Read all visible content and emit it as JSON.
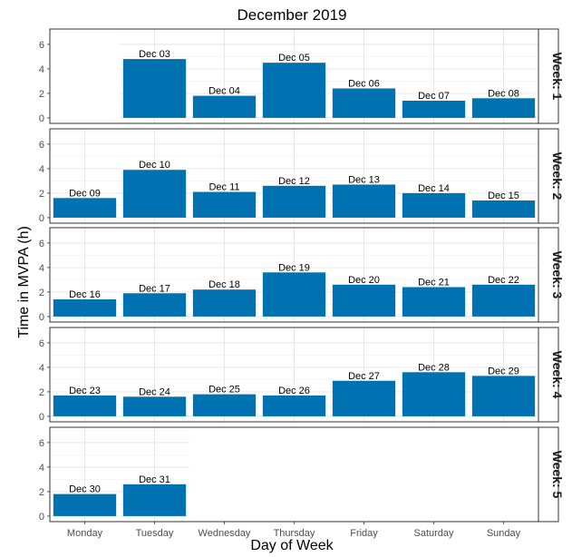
{
  "chart_data": {
    "type": "bar",
    "title": "December 2019",
    "xlabel": "Day of Week",
    "ylabel": "Time in MVPA (h)",
    "ylim": [
      0,
      7
    ],
    "yticks": [
      0,
      2,
      4,
      6
    ],
    "categories": [
      "Monday",
      "Tuesday",
      "Wednesday",
      "Thursday",
      "Friday",
      "Saturday",
      "Sunday"
    ],
    "bar_color": "#0072B2",
    "grid": true,
    "facets": [
      {
        "strip": "Week: 1",
        "grid_start_col": 1,
        "bars": [
          {
            "day": "Tuesday",
            "label": "Dec 03",
            "value": 4.8
          },
          {
            "day": "Wednesday",
            "label": "Dec 04",
            "value": 1.8
          },
          {
            "day": "Thursday",
            "label": "Dec 05",
            "value": 4.5
          },
          {
            "day": "Friday",
            "label": "Dec 06",
            "value": 2.4
          },
          {
            "day": "Saturday",
            "label": "Dec 07",
            "value": 1.4
          },
          {
            "day": "Sunday",
            "label": "Dec 08",
            "value": 1.6
          }
        ]
      },
      {
        "strip": "Week: 2",
        "grid_start_col": 0,
        "bars": [
          {
            "day": "Monday",
            "label": "Dec 09",
            "value": 1.6
          },
          {
            "day": "Tuesday",
            "label": "Dec 10",
            "value": 3.9
          },
          {
            "day": "Wednesday",
            "label": "Dec 11",
            "value": 2.1
          },
          {
            "day": "Thursday",
            "label": "Dec 12",
            "value": 2.6
          },
          {
            "day": "Friday",
            "label": "Dec 13",
            "value": 2.7
          },
          {
            "day": "Saturday",
            "label": "Dec 14",
            "value": 2.0
          },
          {
            "day": "Sunday",
            "label": "Dec 15",
            "value": 1.4
          }
        ]
      },
      {
        "strip": "Week: 3",
        "grid_start_col": 0,
        "bars": [
          {
            "day": "Monday",
            "label": "Dec 16",
            "value": 1.4
          },
          {
            "day": "Tuesday",
            "label": "Dec 17",
            "value": 1.9
          },
          {
            "day": "Wednesday",
            "label": "Dec 18",
            "value": 2.2
          },
          {
            "day": "Thursday",
            "label": "Dec 19",
            "value": 3.6
          },
          {
            "day": "Friday",
            "label": "Dec 20",
            "value": 2.6
          },
          {
            "day": "Saturday",
            "label": "Dec 21",
            "value": 2.4
          },
          {
            "day": "Sunday",
            "label": "Dec 22",
            "value": 2.6
          }
        ]
      },
      {
        "strip": "Week: 4",
        "grid_start_col": 0,
        "bars": [
          {
            "day": "Monday",
            "label": "Dec 23",
            "value": 1.7
          },
          {
            "day": "Tuesday",
            "label": "Dec 24",
            "value": 1.6
          },
          {
            "day": "Wednesday",
            "label": "Dec 25",
            "value": 1.8
          },
          {
            "day": "Thursday",
            "label": "Dec 26",
            "value": 1.7
          },
          {
            "day": "Friday",
            "label": "Dec 27",
            "value": 2.9
          },
          {
            "day": "Saturday",
            "label": "Dec 28",
            "value": 3.6
          },
          {
            "day": "Sunday",
            "label": "Dec 29",
            "value": 3.3
          }
        ]
      },
      {
        "strip": "Week: 5",
        "grid_start_col": 0,
        "grid_end_col": 1,
        "bars": [
          {
            "day": "Monday",
            "label": "Dec 30",
            "value": 1.8
          },
          {
            "day": "Tuesday",
            "label": "Dec 31",
            "value": 2.6
          }
        ]
      }
    ]
  }
}
